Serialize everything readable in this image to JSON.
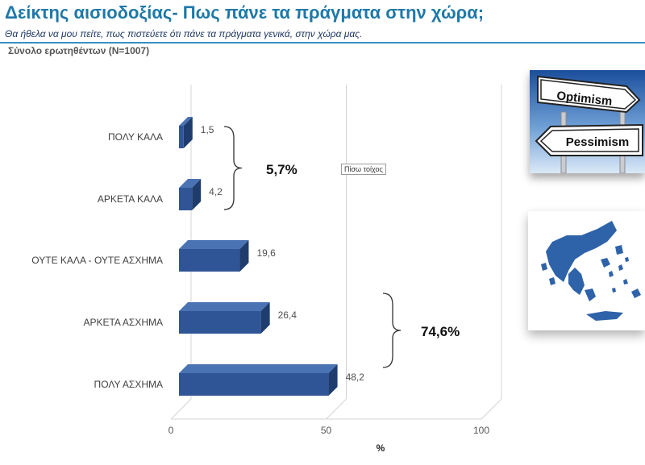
{
  "header": {
    "title": "Δείκτης αισιοδοξίας- Πως πάνε τα πράγματα στην χώρα;",
    "subtitle": "Θα ήθελα να μου πείτε, πως πιστεύετε ότι πάνε τα πράγματα γενικά, στην χώρα μας.",
    "base": "Σύνολο ερωτηθέντων (N=1007)"
  },
  "badge": "Πίσω τοίχος",
  "images": {
    "sign_top": "Optimism",
    "sign_bottom": "Pessimism",
    "map_icon": "greece-map-icon",
    "sign_icon": "direction-signs-icon"
  },
  "colors": {
    "bar_front": "#2f5597",
    "bar_top": "#4a73b4",
    "bar_side": "#1f3c6e",
    "title": "#1f78a8"
  },
  "chart_data": {
    "type": "bar",
    "orientation": "horizontal",
    "categories": [
      "ΠΟΛΥ ΚΑΛΑ",
      "ΑΡΚΕΤΑ ΚΑΛΑ",
      "ΟΥΤΕ ΚΑΛΑ - ΟΥΤΕ ΑΣΧΗΜΑ",
      "ΑΡΚΕΤΑ ΑΣΧΗΜΑ",
      "ΠΟΛΥ ΑΣΧΗΜΑ"
    ],
    "values": [
      1.5,
      4.2,
      19.6,
      26.4,
      48.2
    ],
    "value_labels": [
      "1,5",
      "4,2",
      "19,6",
      "26,4",
      "48,2"
    ],
    "xlabel": "%",
    "xlim": [
      0,
      100
    ],
    "xticks": [
      "0",
      "50",
      "100"
    ],
    "grid": true,
    "groups": [
      {
        "label": "5,7%",
        "from": 0,
        "to": 1
      },
      {
        "label": "74,6%",
        "from": 3,
        "to": 4
      }
    ]
  }
}
